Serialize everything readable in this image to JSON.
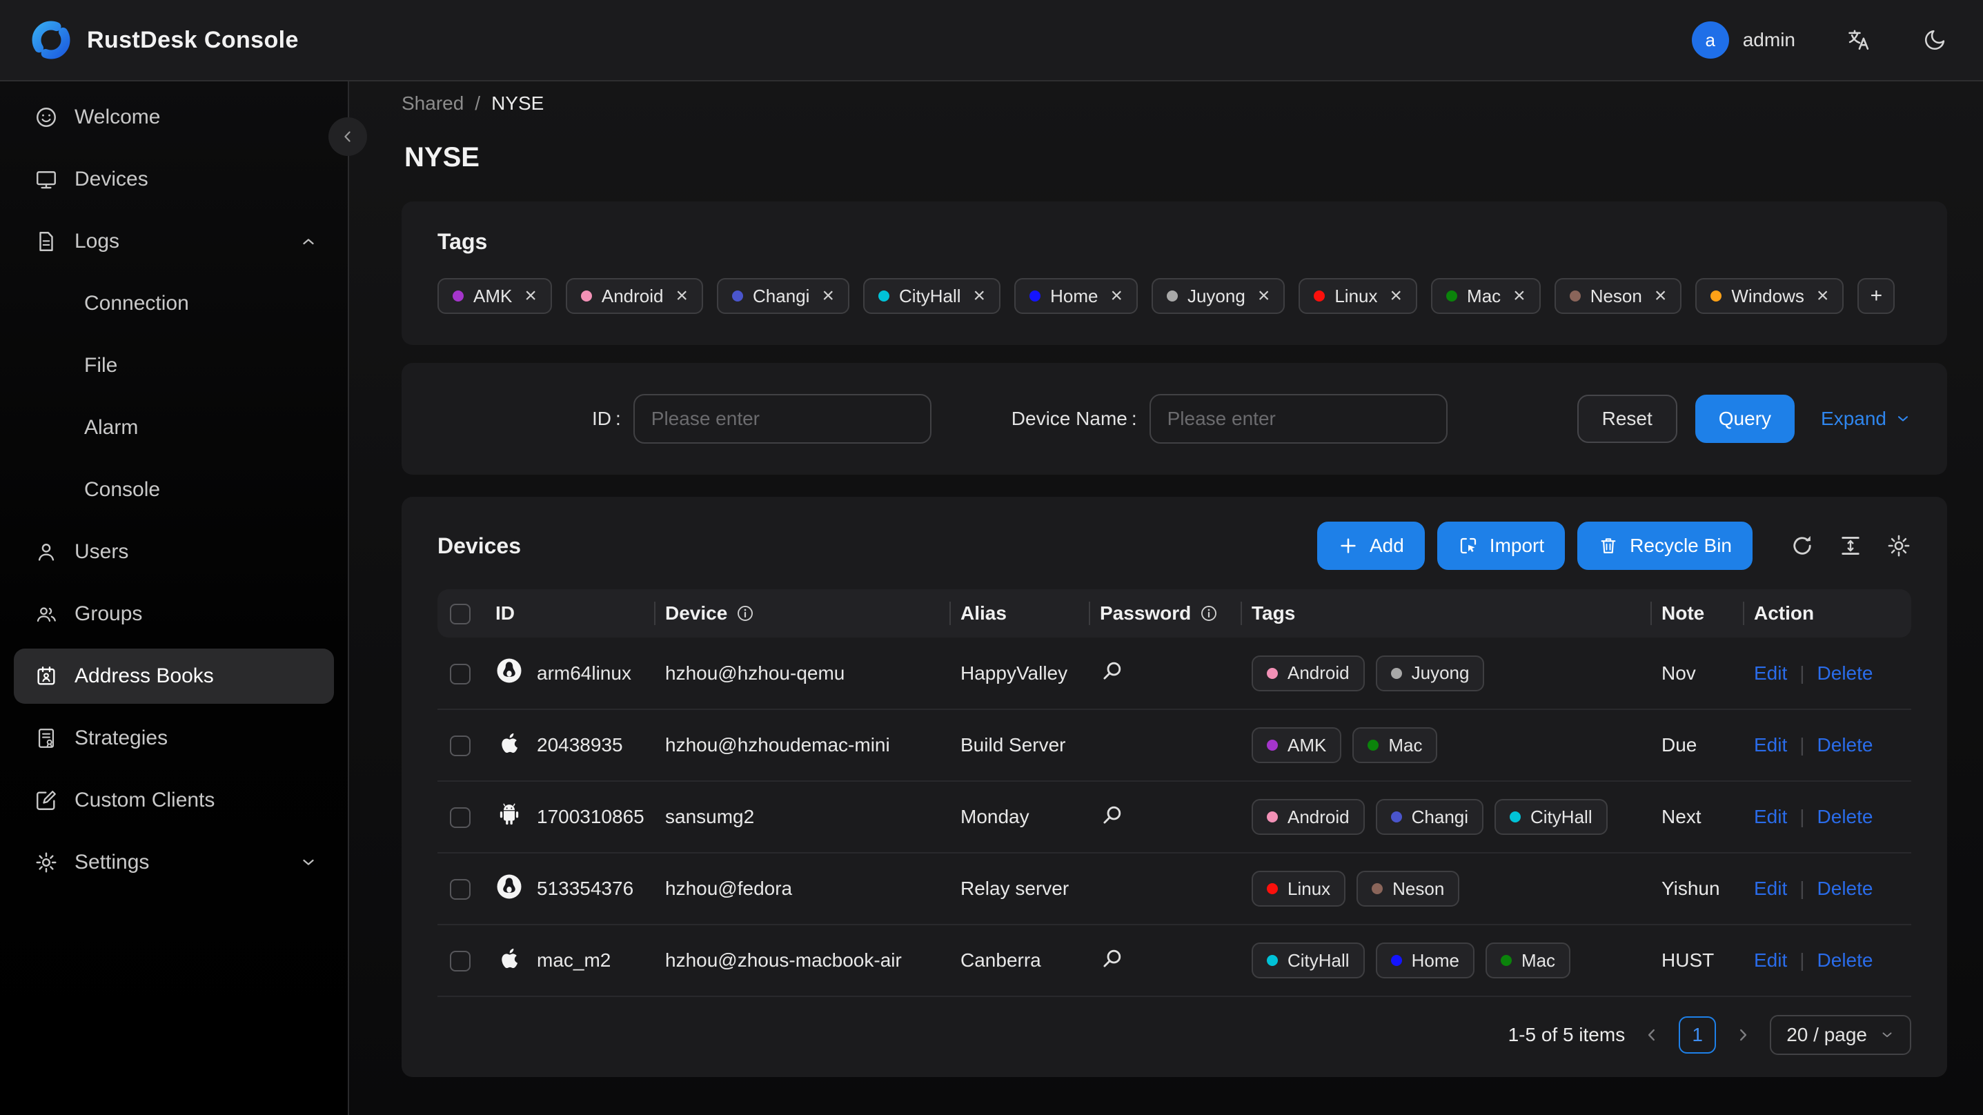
{
  "colors": {
    "accent_blue": "#1e80e8",
    "link_blue": "#2a6cea",
    "avatar_blue": "#1f6fe8",
    "tag_colors": {
      "AMK": "#a435cb",
      "Android": "#f291b6",
      "Changi": "#4a55cc",
      "CityHall": "#00c2d7",
      "Home": "#1414ff",
      "Juyong": "#a8a8a8",
      "Linux": "#fb100c",
      "Mac": "#0b830b",
      "Neson": "#8a655a",
      "Windows": "#ffa117"
    }
  },
  "header": {
    "app_title": "RustDesk Console",
    "user_initial": "a",
    "user_name": "admin"
  },
  "sidebar": {
    "items": [
      {
        "label": "Welcome"
      },
      {
        "label": "Devices"
      },
      {
        "label": "Logs"
      },
      {
        "label": "Connection"
      },
      {
        "label": "File"
      },
      {
        "label": "Alarm"
      },
      {
        "label": "Console"
      },
      {
        "label": "Users"
      },
      {
        "label": "Groups"
      },
      {
        "label": "Address Books"
      },
      {
        "label": "Strategies"
      },
      {
        "label": "Custom Clients"
      },
      {
        "label": "Settings"
      }
    ]
  },
  "breadcrumb": {
    "parent": "Shared",
    "separator": "/",
    "current": "NYSE"
  },
  "page_title": "NYSE",
  "tags_card": {
    "title": "Tags",
    "remove_symbol": "×",
    "add_button": "+",
    "tags": [
      "AMK",
      "Android",
      "Changi",
      "CityHall",
      "Home",
      "Juyong",
      "Linux",
      "Mac",
      "Neson",
      "Windows"
    ]
  },
  "filter": {
    "id_label": "ID",
    "device_label": "Device Name",
    "colon": ":",
    "placeholder": "Please enter",
    "reset": "Reset",
    "query": "Query",
    "expand": "Expand"
  },
  "devices_card": {
    "title": "Devices",
    "add": "Add",
    "import": "Import",
    "recycle_bin": "Recycle Bin"
  },
  "table": {
    "columns": [
      {
        "label": "ID"
      },
      {
        "label": "Device"
      },
      {
        "label": "Alias"
      },
      {
        "label": "Password"
      },
      {
        "label": "Tags"
      },
      {
        "label": "Note"
      },
      {
        "label": "Action"
      }
    ],
    "edit": "Edit",
    "delete": "Delete",
    "action_divider": "|",
    "rows": [
      {
        "os": "linux",
        "id": "arm64linux",
        "device": "hzhou@hzhou-qemu",
        "alias": "HappyValley",
        "password_search": true,
        "tags": [
          "Android",
          "Juyong"
        ],
        "note": "Nov"
      },
      {
        "os": "apple",
        "id": "20438935",
        "device": "hzhou@hzhoudemac-mini",
        "alias": "Build Server",
        "password_search": false,
        "tags": [
          "AMK",
          "Mac"
        ],
        "note": "Due"
      },
      {
        "os": "android",
        "id": "1700310865",
        "device": "sansumg2",
        "alias": "Monday",
        "password_search": true,
        "tags": [
          "Android",
          "Changi",
          "CityHall"
        ],
        "note": "Next"
      },
      {
        "os": "linux",
        "id": "513354376",
        "device": "hzhou@fedora",
        "alias": "Relay server",
        "password_search": false,
        "tags": [
          "Linux",
          "Neson"
        ],
        "note": "Yishun"
      },
      {
        "os": "apple",
        "id": "mac_m2",
        "device": "hzhou@zhous-macbook-air",
        "alias": "Canberra",
        "password_search": true,
        "tags": [
          "CityHall",
          "Home",
          "Mac"
        ],
        "note": "HUST"
      }
    ]
  },
  "pagination": {
    "summary": "1-5 of 5 items",
    "page": "1",
    "page_size": "20 / page"
  }
}
